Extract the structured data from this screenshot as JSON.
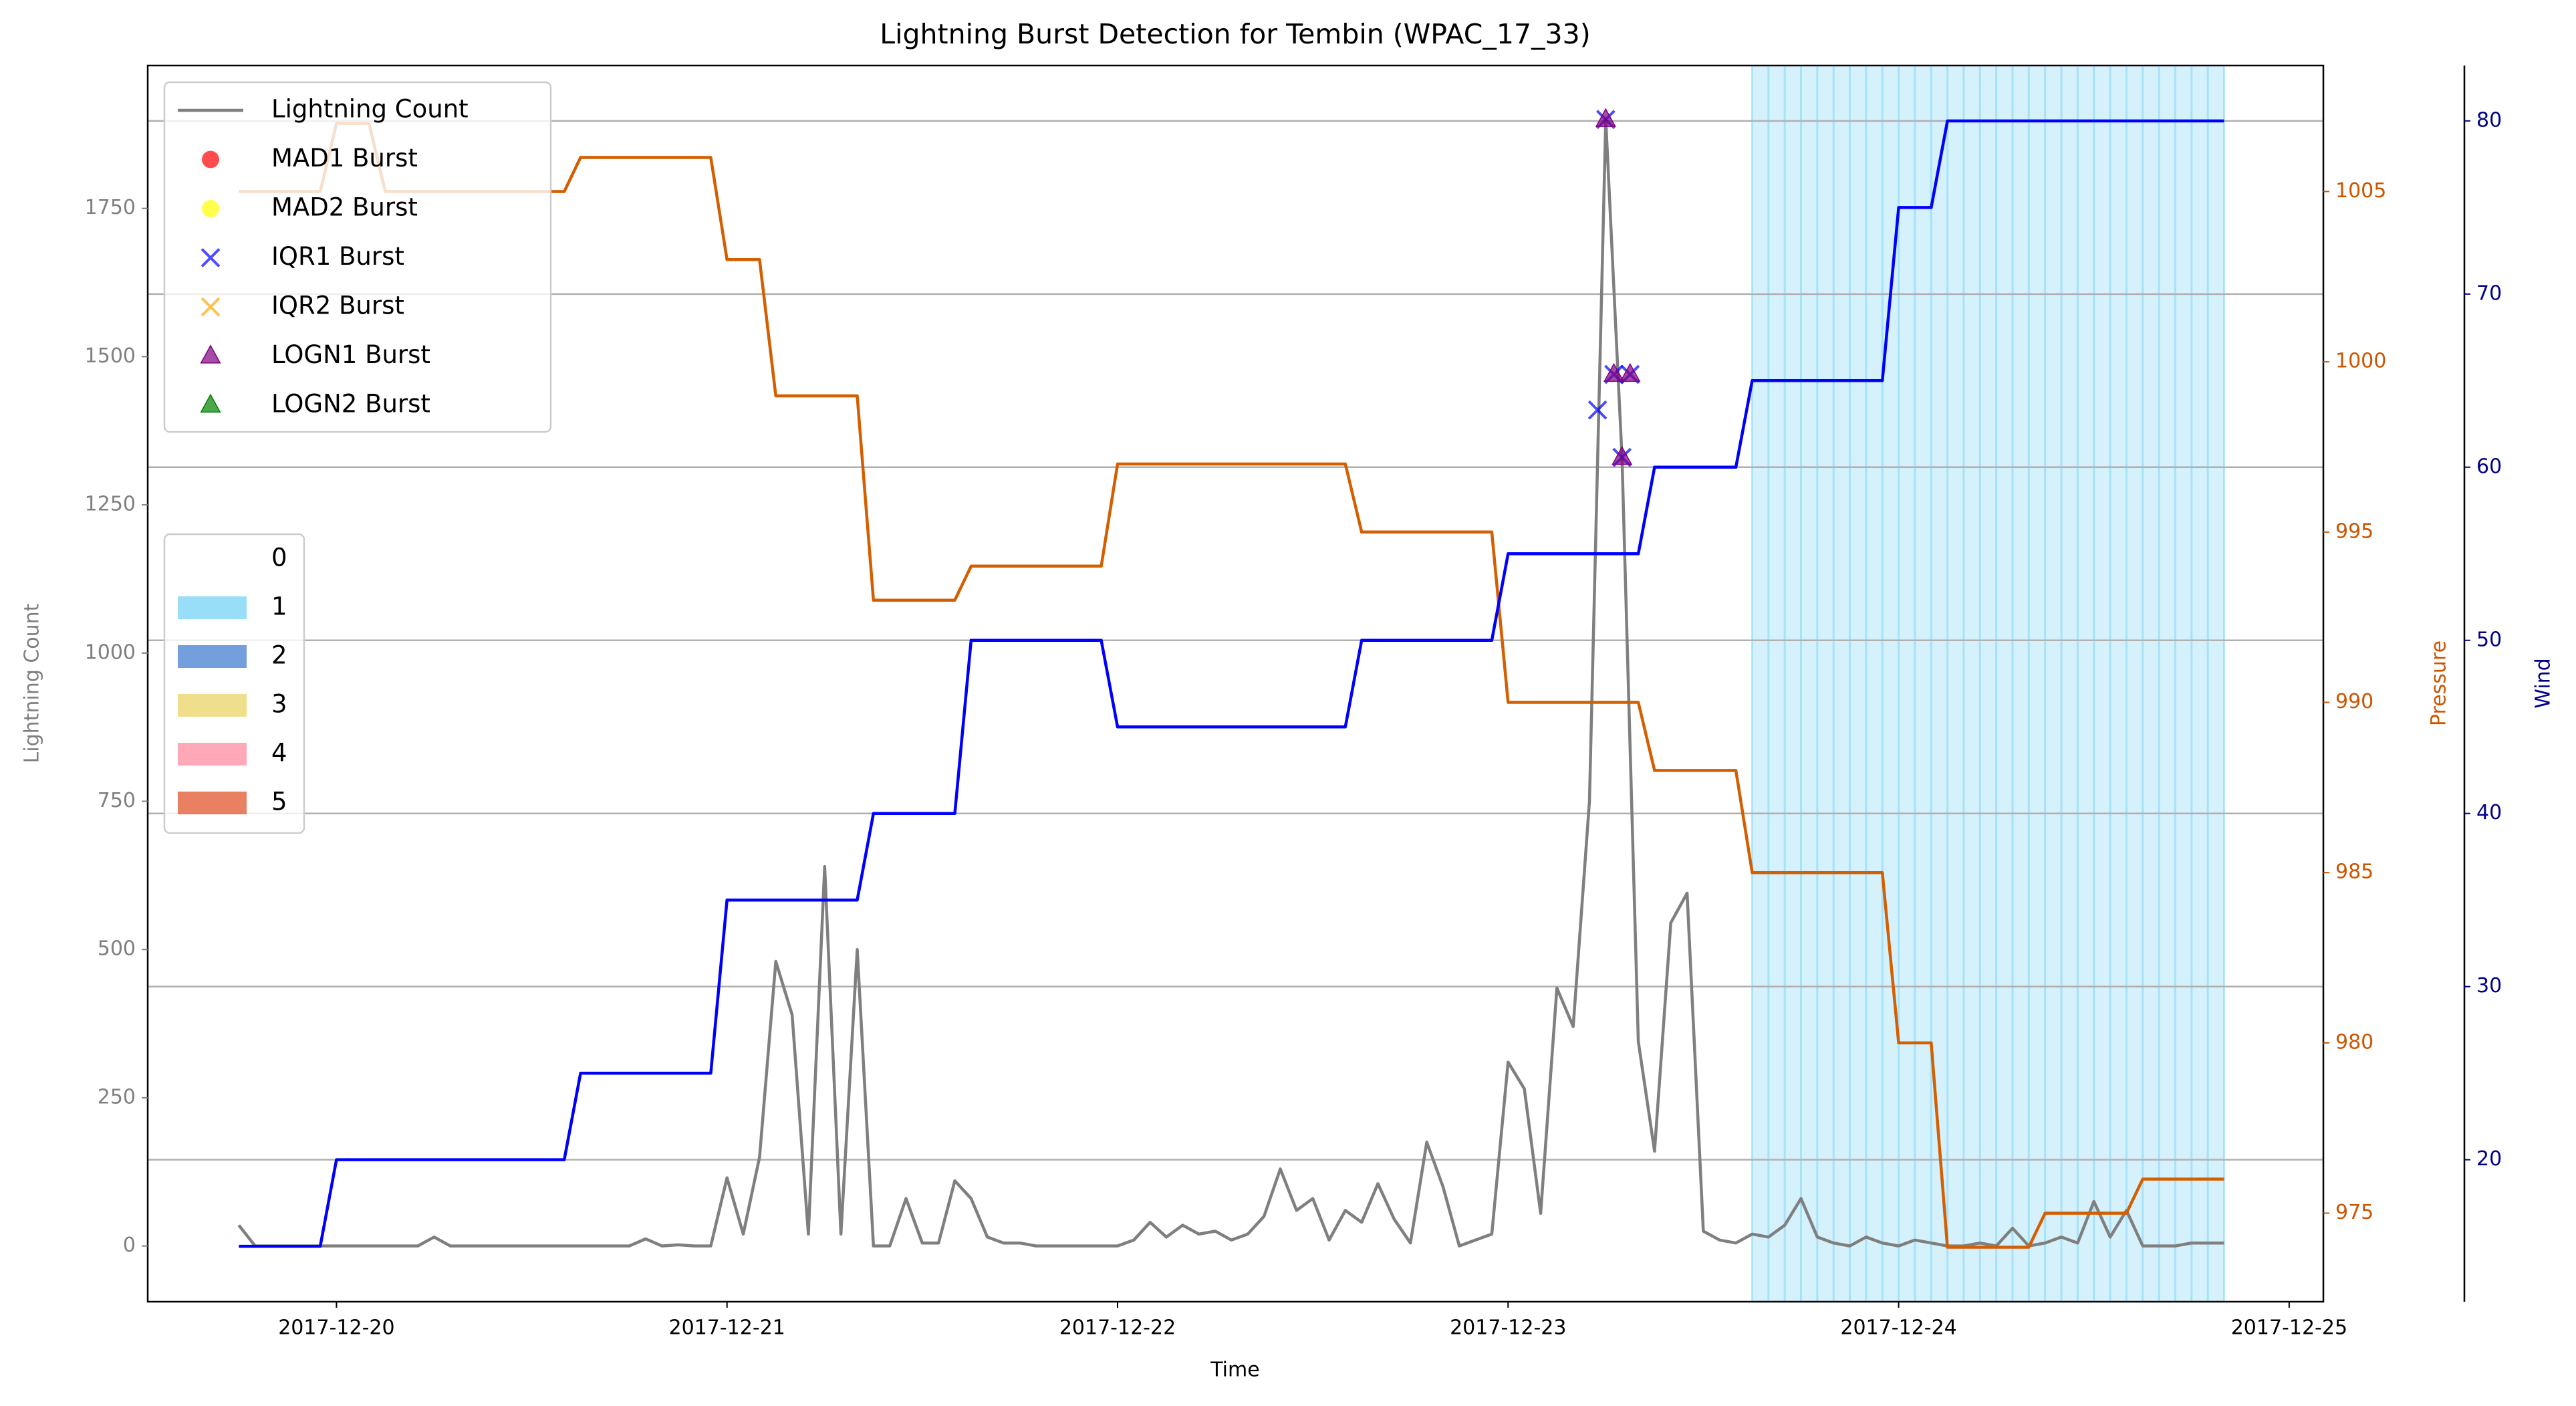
{
  "chart_data": {
    "type": "line",
    "title": "Lightning Burst Detection for Tembin (WPAC_17_33)",
    "xlabel": "Time",
    "ylabel": "Lightning Count",
    "y2label": "Pressure",
    "y3label": "Wind",
    "xlim": [
      "2017-12-19 12:24",
      "2017-12-25 02:06"
    ],
    "xticks": [
      "2017-12-20",
      "2017-12-21",
      "2017-12-22",
      "2017-12-23",
      "2017-12-24",
      "2017-12-25"
    ],
    "ylim": [
      -94,
      1991
    ],
    "yticks": [
      0,
      250,
      500,
      750,
      1000,
      1250,
      1500,
      1750
    ],
    "y2lim": [
      972.4,
      1008.7
    ],
    "y2ticks": [
      975,
      980,
      985,
      990,
      995,
      1000,
      1005
    ],
    "y3lim": [
      11.8,
      83.2
    ],
    "y3ticks": [
      20,
      30,
      40,
      50,
      60,
      70,
      80
    ],
    "grid": "y3",
    "x": [
      "2017-12-19 18:00",
      "2017-12-19 19:00",
      "2017-12-19 20:00",
      "2017-12-19 21:00",
      "2017-12-19 22:00",
      "2017-12-19 23:00",
      "2017-12-20 00:00",
      "2017-12-20 01:00",
      "2017-12-20 02:00",
      "2017-12-20 03:00",
      "2017-12-20 04:00",
      "2017-12-20 05:00",
      "2017-12-20 06:00",
      "2017-12-20 07:00",
      "2017-12-20 08:00",
      "2017-12-20 09:00",
      "2017-12-20 10:00",
      "2017-12-20 11:00",
      "2017-12-20 12:00",
      "2017-12-20 13:00",
      "2017-12-20 14:00",
      "2017-12-20 15:00",
      "2017-12-20 16:00",
      "2017-12-20 17:00",
      "2017-12-20 18:00",
      "2017-12-20 19:00",
      "2017-12-20 20:00",
      "2017-12-20 21:00",
      "2017-12-20 22:00",
      "2017-12-20 23:00",
      "2017-12-21 00:00",
      "2017-12-21 01:00",
      "2017-12-21 02:00",
      "2017-12-21 03:00",
      "2017-12-21 04:00",
      "2017-12-21 05:00",
      "2017-12-21 06:00",
      "2017-12-21 07:00",
      "2017-12-21 08:00",
      "2017-12-21 09:00",
      "2017-12-21 10:00",
      "2017-12-21 11:00",
      "2017-12-21 12:00",
      "2017-12-21 13:00",
      "2017-12-21 14:00",
      "2017-12-21 15:00",
      "2017-12-21 16:00",
      "2017-12-21 17:00",
      "2017-12-21 18:00",
      "2017-12-21 19:00",
      "2017-12-21 20:00",
      "2017-12-21 21:00",
      "2017-12-21 22:00",
      "2017-12-21 23:00",
      "2017-12-22 00:00",
      "2017-12-22 01:00",
      "2017-12-22 02:00",
      "2017-12-22 03:00",
      "2017-12-22 04:00",
      "2017-12-22 05:00",
      "2017-12-22 06:00",
      "2017-12-22 07:00",
      "2017-12-22 08:00",
      "2017-12-22 09:00",
      "2017-12-22 10:00",
      "2017-12-22 11:00",
      "2017-12-22 12:00",
      "2017-12-22 13:00",
      "2017-12-22 14:00",
      "2017-12-22 15:00",
      "2017-12-22 16:00",
      "2017-12-22 17:00",
      "2017-12-22 18:00",
      "2017-12-22 19:00",
      "2017-12-22 20:00",
      "2017-12-22 21:00",
      "2017-12-22 22:00",
      "2017-12-22 23:00",
      "2017-12-23 00:00",
      "2017-12-23 01:00",
      "2017-12-23 02:00",
      "2017-12-23 03:00",
      "2017-12-23 04:00",
      "2017-12-23 05:00",
      "2017-12-23 06:00",
      "2017-12-23 07:00",
      "2017-12-23 08:00",
      "2017-12-23 09:00",
      "2017-12-23 10:00",
      "2017-12-23 11:00",
      "2017-12-23 12:00",
      "2017-12-23 13:00",
      "2017-12-23 14:00",
      "2017-12-23 15:00",
      "2017-12-23 16:00",
      "2017-12-23 17:00",
      "2017-12-23 18:00",
      "2017-12-23 19:00",
      "2017-12-23 20:00",
      "2017-12-23 21:00",
      "2017-12-23 22:00",
      "2017-12-23 23:00",
      "2017-12-24 00:00",
      "2017-12-24 01:00",
      "2017-12-24 02:00",
      "2017-12-24 03:00",
      "2017-12-24 04:00",
      "2017-12-24 05:00",
      "2017-12-24 06:00",
      "2017-12-24 07:00",
      "2017-12-24 08:00",
      "2017-12-24 09:00",
      "2017-12-24 10:00",
      "2017-12-24 11:00",
      "2017-12-24 12:00",
      "2017-12-24 13:00",
      "2017-12-24 14:00",
      "2017-12-24 15:00",
      "2017-12-24 16:00",
      "2017-12-24 17:00",
      "2017-12-24 18:00",
      "2017-12-24 19:00",
      "2017-12-24 20:00"
    ],
    "series": [
      {
        "name": "Lightning Count",
        "color": "#7f7f7f",
        "axis": "y",
        "values": [
          35,
          0,
          0,
          0,
          0,
          0,
          0,
          0,
          0,
          0,
          0,
          0,
          15,
          0,
          0,
          0,
          0,
          0,
          0,
          0,
          0,
          0,
          0,
          0,
          0,
          12,
          0,
          2,
          0,
          0,
          115,
          20,
          150,
          480,
          390,
          20,
          640,
          20,
          500,
          0,
          0,
          80,
          5,
          5,
          110,
          80,
          15,
          5,
          5,
          0,
          0,
          0,
          0,
          0,
          0,
          10,
          40,
          15,
          35,
          20,
          25,
          10,
          20,
          50,
          130,
          60,
          80,
          10,
          60,
          40,
          105,
          45,
          5,
          175,
          100,
          0,
          10,
          20,
          310,
          265,
          55,
          435,
          370,
          750,
          1900,
          1330,
          345,
          160,
          545,
          595,
          25,
          10,
          5,
          20,
          15,
          35,
          80,
          15,
          5,
          0,
          15,
          5,
          0,
          10,
          5,
          0,
          0,
          5,
          0,
          30,
          0,
          5,
          15,
          5,
          75,
          15,
          60,
          0,
          0,
          0,
          5,
          5,
          5
        ]
      },
      {
        "color": "#d45f00",
        "axis": "y2",
        "values": [
          1005,
          1005,
          1005,
          1005,
          1005,
          1005,
          1007,
          1007,
          1007,
          1005,
          1005,
          1005,
          1005,
          1005,
          1005,
          1005,
          1005,
          1005,
          1005,
          1005,
          1005,
          1006,
          1006,
          1006,
          1006,
          1006,
          1006,
          1006,
          1006,
          1006,
          1003,
          1003,
          1003,
          999,
          999,
          999,
          999,
          999,
          999,
          993,
          993,
          993,
          993,
          993,
          993,
          994,
          994,
          994,
          994,
          994,
          994,
          994,
          994,
          994,
          997,
          997,
          997,
          997,
          997,
          997,
          997,
          997,
          997,
          997,
          997,
          997,
          997,
          997,
          997,
          995,
          995,
          995,
          995,
          995,
          995,
          995,
          995,
          995,
          990,
          990,
          990,
          990,
          990,
          990,
          990,
          990,
          990,
          988,
          988,
          988,
          988,
          988,
          988,
          985,
          985,
          985,
          985,
          985,
          985,
          985,
          985,
          985,
          980,
          980,
          980,
          974,
          974,
          974,
          974,
          974,
          974,
          975,
          975,
          975,
          975,
          975,
          975,
          976,
          976,
          976,
          976,
          976,
          976
        ]
      },
      {
        "color": "#0000ff",
        "axis": "y3",
        "values": [
          15,
          15,
          15,
          15,
          15,
          15,
          20,
          20,
          20,
          20,
          20,
          20,
          20,
          20,
          20,
          20,
          20,
          20,
          20,
          20,
          20,
          25,
          25,
          25,
          25,
          25,
          25,
          25,
          25,
          25,
          35,
          35,
          35,
          35,
          35,
          35,
          35,
          35,
          35,
          40,
          40,
          40,
          40,
          40,
          40,
          50,
          50,
          50,
          50,
          50,
          50,
          50,
          50,
          50,
          45,
          45,
          45,
          45,
          45,
          45,
          45,
          45,
          45,
          45,
          45,
          45,
          45,
          45,
          45,
          50,
          50,
          50,
          50,
          50,
          50,
          50,
          50,
          50,
          55,
          55,
          55,
          55,
          55,
          55,
          55,
          55,
          55,
          60,
          60,
          60,
          60,
          60,
          60,
          65,
          65,
          65,
          65,
          65,
          65,
          65,
          65,
          65,
          75,
          75,
          75,
          80,
          80,
          80,
          80,
          80,
          80,
          80,
          80,
          80,
          80,
          80,
          80,
          80,
          80,
          80,
          80,
          80,
          80
        ]
      }
    ],
    "markers": [
      {
        "name": "MAD1 Burst",
        "marker": "o",
        "color": "#ff0000",
        "x": [],
        "values": []
      },
      {
        "name": "MAD2 Burst",
        "marker": "o",
        "color": "#ffff00",
        "x": [],
        "values": []
      },
      {
        "name": "IQR1 Burst",
        "marker": "x",
        "color": "#0000ff",
        "x": [
          "2017-12-23 05:30",
          "2017-12-23 06:00",
          "2017-12-23 06:30",
          "2017-12-23 07:00",
          "2017-12-23 07:30"
        ],
        "values": [
          1410,
          1900,
          1470,
          1330,
          1470
        ]
      },
      {
        "name": "IQR2 Burst",
        "marker": "x",
        "color": "#ffa500",
        "x": [],
        "values": []
      },
      {
        "name": "LOGN1 Burst",
        "marker": "^",
        "color": "#800080",
        "x": [
          "2017-12-23 06:00",
          "2017-12-23 06:30",
          "2017-12-23 07:00",
          "2017-12-23 07:30"
        ],
        "values": [
          1900,
          1470,
          1330,
          1470
        ]
      },
      {
        "name": "LOGN2 Burst",
        "marker": "^",
        "color": "#008000",
        "x": [],
        "values": []
      }
    ],
    "shading": {
      "levels": [
        "0",
        "1",
        "2",
        "3",
        "4",
        "5"
      ],
      "colors": [
        "#ffffff",
        "#87d8f7",
        "#5b8fd6",
        "#ecd877",
        "#ff99aa",
        "#e56a45"
      ],
      "spans": [
        {
          "level": 1,
          "start": "2017-12-23 15:00",
          "end": "2017-12-24 20:00"
        }
      ]
    }
  }
}
